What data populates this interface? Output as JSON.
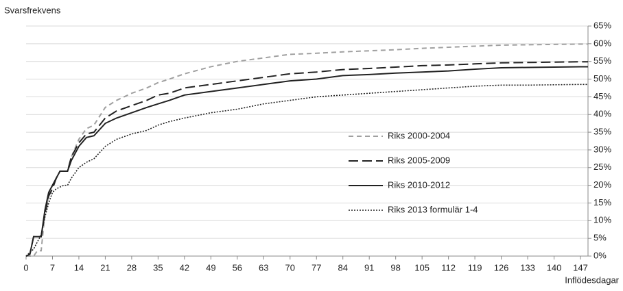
{
  "chart_data": {
    "type": "line",
    "y_axis_title": "Svarsfrekvens",
    "x_axis_title": "Inflödesdagar",
    "x": [
      0,
      1,
      2,
      3,
      4,
      5,
      6,
      7,
      8,
      9,
      10,
      11,
      12,
      14,
      16,
      18,
      21,
      24,
      28,
      32,
      35,
      38,
      42,
      49,
      56,
      63,
      70,
      77,
      84,
      91,
      98,
      105,
      112,
      119,
      126,
      133,
      140,
      147,
      149
    ],
    "series": [
      {
        "name": "Riks 2000-2004",
        "color": "#a0a0a0",
        "dash": "dashed",
        "values": [
          0,
          0,
          0,
          1.5,
          1.5,
          12,
          17,
          20,
          22,
          24,
          24,
          24,
          28,
          33,
          36,
          37,
          42,
          44,
          46,
          47.5,
          49,
          50,
          51.5,
          53.5,
          55,
          56,
          57,
          57.3,
          57.7,
          58,
          58.3,
          58.7,
          59,
          59.3,
          59.6,
          59.7,
          59.8,
          59.9,
          59.9
        ]
      },
      {
        "name": "Riks 2005-2009",
        "color": "#222222",
        "dash": "long-dashed",
        "values": [
          0,
          0.5,
          5.5,
          5.5,
          5.5,
          12,
          17,
          19,
          22,
          24,
          24,
          24,
          28,
          32,
          34.5,
          35,
          39,
          41,
          42.5,
          44,
          45.5,
          46,
          47.5,
          48.5,
          49.5,
          50.5,
          51.5,
          52,
          52.7,
          53,
          53.4,
          53.8,
          54,
          54.3,
          54.6,
          54.7,
          54.8,
          54.9,
          54.9
        ]
      },
      {
        "name": "Riks 2010-2012",
        "color": "#222222",
        "dash": "solid",
        "values": [
          0,
          0.5,
          5.5,
          5.5,
          5.5,
          13,
          18,
          20,
          22,
          24,
          24,
          24,
          27,
          31,
          33.5,
          34,
          37.5,
          39,
          40.5,
          42,
          43,
          44,
          45.5,
          46.5,
          47.5,
          48.5,
          49.5,
          50,
          51,
          51.3,
          51.7,
          52,
          52.3,
          52.8,
          53.2,
          53.3,
          53.4,
          53.5,
          53.5
        ]
      },
      {
        "name": "Riks 2013 formulär 1-4",
        "color": "#222222",
        "dash": "dotted",
        "values": [
          0,
          1,
          2,
          4,
          6,
          11,
          15,
          18,
          19,
          19.5,
          20,
          20,
          22,
          25,
          26.5,
          27.5,
          31,
          33,
          34.5,
          35.5,
          37,
          38,
          39,
          40.5,
          41.5,
          43,
          44,
          45,
          45.5,
          46,
          46.5,
          47,
          47.5,
          48,
          48.3,
          48.3,
          48.4,
          48.5,
          48.5
        ]
      }
    ],
    "xlim": [
      0,
      149
    ],
    "xticks": [
      0,
      7,
      14,
      21,
      28,
      35,
      42,
      49,
      56,
      63,
      70,
      77,
      84,
      91,
      98,
      105,
      112,
      119,
      126,
      133,
      140,
      147
    ],
    "ylim": [
      0,
      65
    ],
    "yticks": [
      {
        "value": 0,
        "label": "0%"
      },
      {
        "value": 5,
        "label": "5%"
      },
      {
        "value": 10,
        "label": "10%"
      },
      {
        "value": 15,
        "label": "15%"
      },
      {
        "value": 20,
        "label": "20%"
      },
      {
        "value": 25,
        "label": "25%"
      },
      {
        "value": 30,
        "label": "30%"
      },
      {
        "value": 35,
        "label": "35%"
      },
      {
        "value": 40,
        "label": "40%"
      },
      {
        "value": 45,
        "label": "45%"
      },
      {
        "value": 50,
        "label": "50%"
      },
      {
        "value": 55,
        "label": "55%"
      },
      {
        "value": 60,
        "label": "60%"
      },
      {
        "value": 65,
        "label": "65%"
      }
    ],
    "grid": true,
    "y_axis_side": "right"
  }
}
